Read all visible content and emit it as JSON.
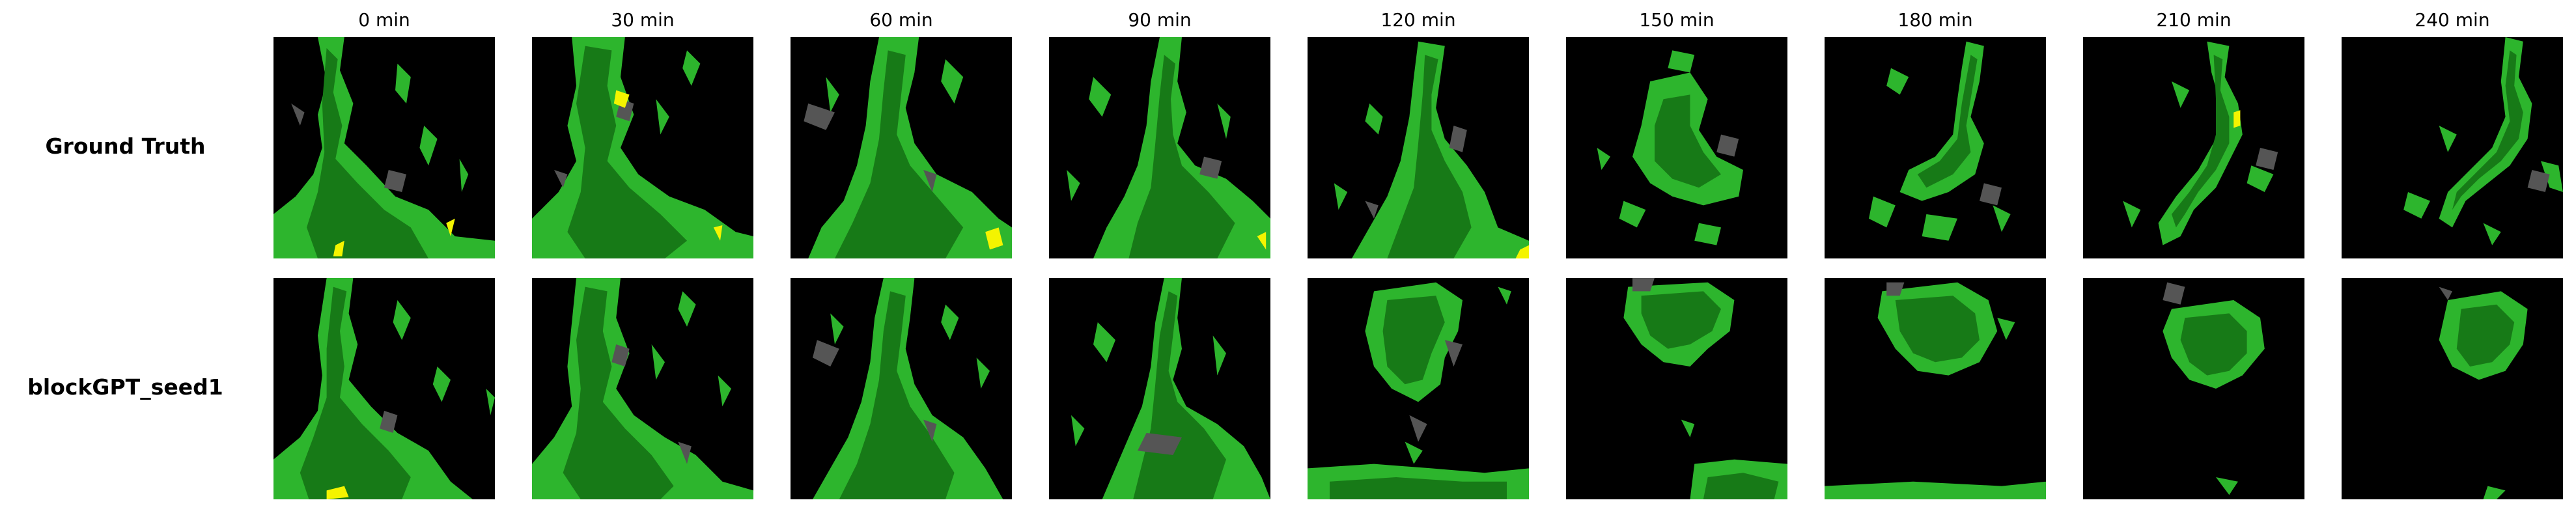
{
  "column_titles": [
    "0 min",
    "30 min",
    "60 min",
    "90 min",
    "120 min",
    "150 min",
    "180 min",
    "210 min",
    "240 min"
  ],
  "row_labels": [
    "Ground Truth",
    "blockGPT_seed1"
  ],
  "colors": {
    "background": "#ffffff",
    "panel_background": "#000000",
    "gray_region": "#555555",
    "light_green": "#2db52d",
    "dark_green": "#177a17",
    "yellow": "#f4f400"
  }
}
